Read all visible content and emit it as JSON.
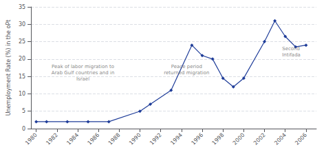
{
  "chart_data": {
    "type": "line",
    "x": [
      1980,
      1981,
      1983,
      1985,
      1987,
      1990,
      1991,
      1993,
      1995,
      1996,
      1997,
      1998,
      1999,
      2000,
      2002,
      2003,
      2004,
      2005,
      2006
    ],
    "values": [
      2,
      2,
      2,
      2,
      2,
      5,
      7,
      11,
      24,
      21,
      20,
      14.5,
      12,
      14.5,
      25,
      31,
      26.5,
      23.5,
      24
    ],
    "color": "#1F3D99",
    "marker": "diamond",
    "ylabel": "Unemployment Rate (%) in the oPt",
    "xlim": [
      1979.5,
      2007
    ],
    "xticks": [
      1980,
      1982,
      1984,
      1986,
      1988,
      1990,
      1992,
      1994,
      1996,
      1998,
      2000,
      2002,
      2004,
      2006
    ],
    "ylim": [
      0,
      35
    ],
    "yticks": [
      0,
      5,
      10,
      15,
      20,
      25,
      30,
      35
    ],
    "grid": true,
    "annotations": [
      {
        "text": "Peak of labor migration to\nArab Gulf countries and in\nIsrael",
        "x": 1984.5,
        "y": 16
      },
      {
        "text": "Peace period\nreturned migration",
        "x": 1994.5,
        "y": 17
      },
      {
        "text": "Second\nIntifada",
        "x": 2003.7,
        "y": 22
      }
    ]
  }
}
